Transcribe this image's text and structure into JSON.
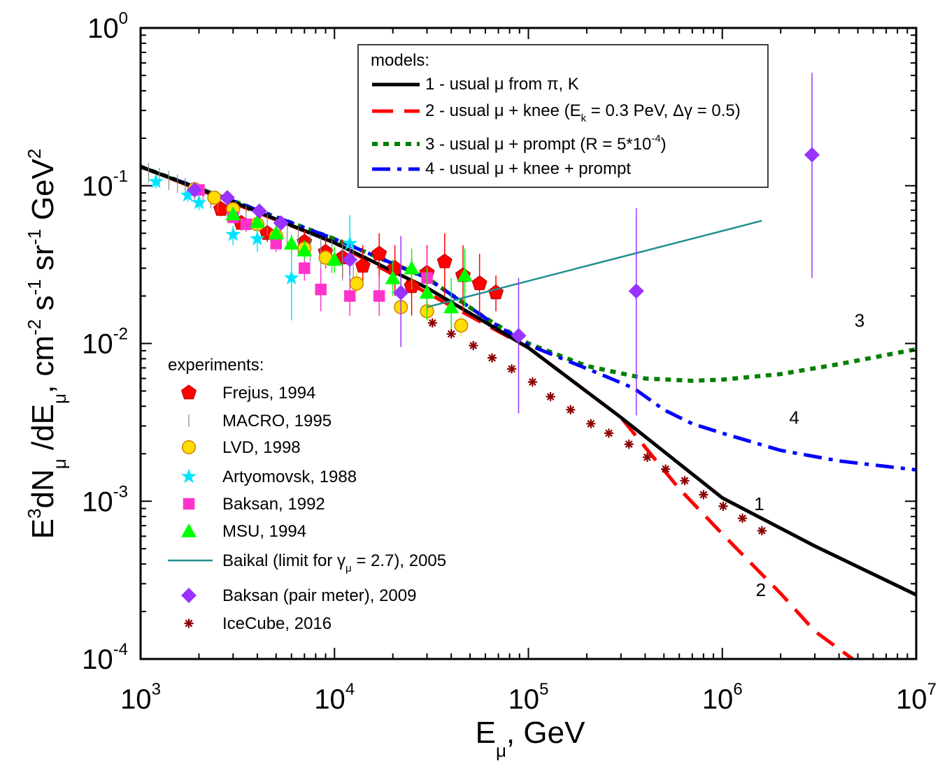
{
  "chart_data": {
    "type": "scatter",
    "x_scale": "log",
    "y_scale": "log",
    "xlim": [
      1000,
      10000000
    ],
    "ylim": [
      0.0001,
      1
    ],
    "x_ticks": [
      {
        "value": 1000,
        "base": "10",
        "exp": "3"
      },
      {
        "value": 10000,
        "base": "10",
        "exp": "4"
      },
      {
        "value": 100000,
        "base": "10",
        "exp": "5"
      },
      {
        "value": 1000000,
        "base": "10",
        "exp": "6"
      },
      {
        "value": 10000000,
        "base": "10",
        "exp": "7"
      }
    ],
    "y_ticks": [
      {
        "value": 0.0001,
        "base": "10",
        "exp": "-4"
      },
      {
        "value": 0.001,
        "base": "10",
        "exp": "-3"
      },
      {
        "value": 0.01,
        "base": "10",
        "exp": "-2"
      },
      {
        "value": 0.1,
        "base": "10",
        "exp": "-1"
      },
      {
        "value": 1,
        "base": "10",
        "exp": "0"
      }
    ],
    "xlabel": {
      "E": "E",
      "sub": "μ",
      "rest": ", GeV"
    },
    "ylabel": {
      "E": "E",
      "sup3": "3",
      "dN": "dN",
      "sub1": "μ",
      "slash": " /dE",
      "sub2": "μ",
      "cm": ", cm",
      "sup_cm": "-2",
      "s": " s",
      "sup_s": "-1",
      "sr": " sr",
      "sup_sr": "-1",
      "gev": " GeV",
      "sup_gev": "2"
    },
    "models_title": "models:",
    "models": [
      {
        "id": "1",
        "label": "1 - usual μ from π, K",
        "color": "#000000",
        "dash": "solid",
        "x": [
          1000,
          3000,
          10000,
          30000,
          100000,
          300000,
          1000000,
          3000000,
          10000000
        ],
        "y": [
          0.132,
          0.079,
          0.0435,
          0.0225,
          0.0094,
          0.0034,
          0.00105,
          0.00052,
          0.000255
        ]
      },
      {
        "id": "2",
        "label": "2 - usual μ + knee (E",
        "label_sub": "k",
        "label_rest": " = 0.3 PeV, Δγ = 0.5)",
        "color": "#ff0000",
        "dash": "long",
        "x": [
          1000,
          10000,
          100000,
          300000,
          400000,
          600000,
          1000000,
          2000000,
          3000000,
          4700000
        ],
        "y": [
          0.132,
          0.0435,
          0.0094,
          0.0034,
          0.0022,
          0.0012,
          0.00062,
          0.00026,
          0.00015,
          0.0001
        ]
      },
      {
        "id": "3",
        "label": "3 - usual μ + prompt (R = 5*10",
        "label_sup": "-4",
        "label_rest": ")",
        "color": "#007f00",
        "dash": "dot",
        "x": [
          1000,
          3000,
          10000,
          30000,
          60000,
          100000,
          200000,
          400000,
          700000,
          1000000,
          2000000,
          4000000,
          10000000
        ],
        "y": [
          0.132,
          0.08,
          0.046,
          0.026,
          0.0145,
          0.01,
          0.0072,
          0.006,
          0.0058,
          0.0059,
          0.0064,
          0.0074,
          0.0092
        ]
      },
      {
        "id": "4",
        "label": "4 - usual μ + knee + prompt",
        "color": "#0000ff",
        "dash": "dashdot",
        "x": [
          1000,
          3000,
          10000,
          30000,
          60000,
          100000,
          250000,
          350000,
          500000,
          700000,
          1000000,
          2000000,
          4000000,
          10000000
        ],
        "y": [
          0.132,
          0.08,
          0.046,
          0.026,
          0.0145,
          0.0098,
          0.0062,
          0.0052,
          0.0038,
          0.0031,
          0.0027,
          0.0021,
          0.0018,
          0.00158
        ]
      }
    ],
    "experiments_title": "experiments:",
    "experiments": [
      {
        "name": "Frejus, 1994",
        "marker": "pentagon",
        "color": "#ff0000",
        "points": [
          [
            2600,
            0.071,
            0.064,
            0.078
          ],
          [
            3300,
            0.058,
            0.052,
            0.065
          ],
          [
            4500,
            0.05,
            0.044,
            0.057
          ],
          [
            7000,
            0.044,
            0.036,
            0.052
          ],
          [
            9000,
            0.038,
            0.03,
            0.047
          ],
          [
            11000,
            0.035,
            0.026,
            0.045
          ],
          [
            14000,
            0.031,
            0.023,
            0.042
          ],
          [
            17000,
            0.037,
            0.026,
            0.05
          ],
          [
            20500,
            0.03,
            0.02,
            0.042
          ],
          [
            25000,
            0.023,
            0.015,
            0.035
          ],
          [
            30000,
            0.028,
            0.017,
            0.042
          ],
          [
            37000,
            0.033,
            0.02,
            0.05
          ],
          [
            46000,
            0.027,
            0.016,
            0.042
          ],
          [
            56000,
            0.024,
            0.015,
            0.037
          ],
          [
            68000,
            0.021,
            0.016,
            0.027
          ]
        ]
      },
      {
        "name": "MACRO, 1995",
        "marker": "vbar",
        "color": "#888888",
        "points": [
          [
            1100,
            0.12,
            0.105,
            0.14
          ],
          [
            1250,
            0.115,
            0.1,
            0.13
          ],
          [
            1400,
            0.108,
            0.094,
            0.124
          ],
          [
            1550,
            0.103,
            0.09,
            0.118
          ],
          [
            1700,
            0.097,
            0.085,
            0.112
          ],
          [
            1900,
            0.092,
            0.08,
            0.105
          ],
          [
            2100,
            0.087,
            0.076,
            0.1
          ],
          [
            2300,
            0.082,
            0.072,
            0.094
          ],
          [
            2500,
            0.078,
            0.068,
            0.089
          ],
          [
            2800,
            0.074,
            0.064,
            0.085
          ],
          [
            3100,
            0.069,
            0.06,
            0.08
          ],
          [
            3500,
            0.064,
            0.055,
            0.075
          ],
          [
            4000,
            0.06,
            0.051,
            0.07
          ],
          [
            4500,
            0.056,
            0.048,
            0.066
          ],
          [
            5000,
            0.052,
            0.044,
            0.062
          ],
          [
            5700,
            0.049,
            0.041,
            0.058
          ],
          [
            6500,
            0.045,
            0.037,
            0.054
          ],
          [
            7500,
            0.041,
            0.033,
            0.05
          ],
          [
            8500,
            0.038,
            0.03,
            0.047
          ],
          [
            9700,
            0.036,
            0.028,
            0.045
          ],
          [
            11000,
            0.033,
            0.025,
            0.043
          ],
          [
            12500,
            0.03,
            0.022,
            0.04
          ]
        ]
      },
      {
        "name": "LVD, 1998",
        "marker": "circle",
        "color": "#ffdd00",
        "points": [
          [
            1900,
            0.095,
            0.09,
            0.1
          ],
          [
            2400,
            0.084,
            0.079,
            0.089
          ],
          [
            3000,
            0.071,
            0.066,
            0.076
          ],
          [
            4000,
            0.057,
            0.053,
            0.062
          ],
          [
            5000,
            0.048,
            0.044,
            0.052
          ],
          [
            7000,
            0.04,
            0.036,
            0.044
          ],
          [
            9000,
            0.035,
            0.031,
            0.039
          ],
          [
            13000,
            0.024,
            0.021,
            0.028
          ],
          [
            22000,
            0.017,
            0.015,
            0.02
          ],
          [
            30000,
            0.016,
            0.014,
            0.018
          ],
          [
            45000,
            0.013,
            0.011,
            0.015
          ]
        ]
      },
      {
        "name": "Artyomovsk, 1988",
        "marker": "star",
        "color": "#00e5ff",
        "points": [
          [
            1200,
            0.106,
            0.096,
            0.116
          ],
          [
            1750,
            0.087,
            0.079,
            0.095
          ],
          [
            2000,
            0.078,
            0.07,
            0.086
          ],
          [
            3000,
            0.049,
            0.042,
            0.056
          ],
          [
            4000,
            0.046,
            0.038,
            0.054
          ],
          [
            6000,
            0.026,
            0.014,
            0.04
          ],
          [
            12000,
            0.043,
            0.025,
            0.065
          ]
        ]
      },
      {
        "name": "Baksan, 1992",
        "marker": "square",
        "color": "#ff33cc",
        "points": [
          [
            2000,
            0.094,
            0.088,
            0.1
          ],
          [
            3000,
            0.063,
            0.058,
            0.069
          ],
          [
            3500,
            0.057,
            0.051,
            0.063
          ],
          [
            5000,
            0.043,
            0.038,
            0.048
          ],
          [
            7000,
            0.03,
            0.025,
            0.036
          ],
          [
            8500,
            0.022,
            0.016,
            0.03
          ],
          [
            12000,
            0.02,
            0.015,
            0.026
          ],
          [
            17000,
            0.02,
            0.015,
            0.027
          ],
          [
            30000,
            0.026,
            0.016,
            0.04
          ]
        ]
      },
      {
        "name": "MSU, 1994",
        "marker": "triangle",
        "color": "#00ff00",
        "points": [
          [
            3000,
            0.066,
            0.061,
            0.072
          ],
          [
            4000,
            0.059,
            0.054,
            0.065
          ],
          [
            5000,
            0.05,
            0.045,
            0.056
          ],
          [
            6000,
            0.043,
            0.038,
            0.049
          ],
          [
            7000,
            0.039,
            0.034,
            0.045
          ],
          [
            10000,
            0.034,
            0.028,
            0.041
          ],
          [
            20000,
            0.026,
            0.02,
            0.034
          ],
          [
            25000,
            0.03,
            0.022,
            0.04
          ],
          [
            30000,
            0.021,
            0.014,
            0.03
          ],
          [
            40000,
            0.017,
            0.011,
            0.026
          ],
          [
            47000,
            0.027,
            0.017,
            0.04
          ]
        ]
      },
      {
        "name": "Baikal (limit for γ",
        "name_sub": "μ",
        "name_rest": " = 2.7), 2005",
        "marker": "line",
        "color": "#1f8f8f",
        "line": {
          "x": [
            30000,
            1600000
          ],
          "y": [
            0.017,
            0.06
          ]
        }
      },
      {
        "name": "Baksan (pair meter), 2009",
        "marker": "diamond",
        "color": "#9933ff",
        "points": [
          [
            1900,
            0.094,
            0.088,
            0.1
          ],
          [
            2800,
            0.084,
            0.078,
            0.09
          ],
          [
            4100,
            0.069,
            0.063,
            0.075
          ],
          [
            5300,
            0.058,
            0.052,
            0.064
          ],
          [
            12000,
            0.034,
            0.027,
            0.043
          ],
          [
            22000,
            0.021,
            0.0095,
            0.048
          ],
          [
            89000,
            0.0112,
            0.0036,
            0.026
          ],
          [
            360000,
            0.0215,
            0.0035,
            0.072
          ],
          [
            2900000,
            0.157,
            0.026,
            0.52
          ]
        ]
      },
      {
        "name": "IceCube, 2016",
        "marker": "asterisk",
        "color": "#8b0000",
        "points": [
          [
            32000,
            0.0135
          ],
          [
            40000,
            0.0115
          ],
          [
            52000,
            0.0097
          ],
          [
            65000,
            0.0081
          ],
          [
            82000,
            0.0069
          ],
          [
            105000,
            0.0057
          ],
          [
            130000,
            0.0046
          ],
          [
            165000,
            0.0038
          ],
          [
            210000,
            0.0031
          ],
          [
            260000,
            0.0027
          ],
          [
            330000,
            0.0023
          ],
          [
            410000,
            0.0019
          ],
          [
            510000,
            0.0016
          ],
          [
            640000,
            0.00135
          ],
          [
            800000,
            0.0011
          ],
          [
            1010000,
            0.00093
          ],
          [
            1270000,
            0.00078
          ],
          [
            1600000,
            0.00065
          ]
        ]
      }
    ],
    "curve_labels": [
      {
        "text": "1",
        "x": 1550000,
        "y": 0.00088
      },
      {
        "text": "2",
        "x": 1580000,
        "y": 0.00025
      },
      {
        "text": "3",
        "x": 5100000,
        "y": 0.0128
      },
      {
        "text": "4",
        "x": 2350000,
        "y": 0.0031
      }
    ]
  }
}
